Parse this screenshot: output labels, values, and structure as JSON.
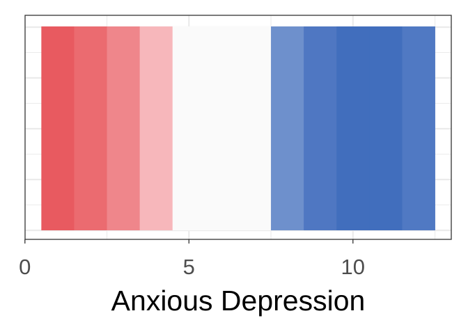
{
  "chart_data": {
    "type": "heatmap",
    "title": "",
    "xlabel": "Anxious Depression",
    "ylabel": "",
    "xlim": [
      0,
      13
    ],
    "x_ticks": [
      0,
      5,
      10
    ],
    "x_tick_labels": [
      "0",
      "5",
      "10"
    ],
    "grid": true,
    "legend": "none",
    "tiles": [
      {
        "x": 1,
        "color": "#e85a60"
      },
      {
        "x": 2,
        "color": "#eb6b70"
      },
      {
        "x": 3,
        "color": "#ef868b"
      },
      {
        "x": 4,
        "color": "#f7b7bb"
      },
      {
        "x": 5,
        "color": "#fafafa"
      },
      {
        "x": 6,
        "color": "#fafafa"
      },
      {
        "x": 7,
        "color": "#fafafa"
      },
      {
        "x": 8,
        "color": "#6e90cc"
      },
      {
        "x": 9,
        "color": "#4f77c2"
      },
      {
        "x": 10,
        "color": "#416ebd"
      },
      {
        "x": 11,
        "color": "#416ebd"
      },
      {
        "x": 12,
        "color": "#5079c3"
      }
    ]
  }
}
